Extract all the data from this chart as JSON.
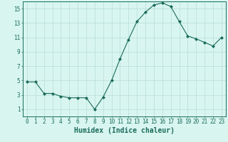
{
  "x": [
    0,
    1,
    2,
    3,
    4,
    5,
    6,
    7,
    8,
    9,
    10,
    11,
    12,
    13,
    14,
    15,
    16,
    17,
    18,
    19,
    20,
    21,
    22,
    23
  ],
  "y": [
    4.8,
    4.8,
    3.2,
    3.2,
    2.8,
    2.6,
    2.6,
    2.6,
    1.0,
    2.7,
    5.0,
    8.0,
    10.7,
    13.2,
    14.5,
    15.5,
    15.8,
    15.3,
    13.2,
    11.2,
    10.8,
    10.3,
    9.8,
    11.0
  ],
  "line_color": "#1a6b5a",
  "marker": "D",
  "marker_size": 2,
  "bg_color": "#d8f5f0",
  "grid_color": "#b8ddd8",
  "xlabel": "Humidex (Indice chaleur)",
  "xlabel_fontsize": 7,
  "ylim": [
    0,
    16
  ],
  "xlim": [
    -0.5,
    23.5
  ],
  "yticks": [
    1,
    3,
    5,
    7,
    9,
    11,
    13,
    15
  ],
  "xticks": [
    0,
    1,
    2,
    3,
    4,
    5,
    6,
    7,
    8,
    9,
    10,
    11,
    12,
    13,
    14,
    15,
    16,
    17,
    18,
    19,
    20,
    21,
    22,
    23
  ],
  "tick_fontsize": 5.5,
  "tick_color": "#1a6b5a",
  "axis_color": "#1a6b5a",
  "linewidth": 0.8
}
